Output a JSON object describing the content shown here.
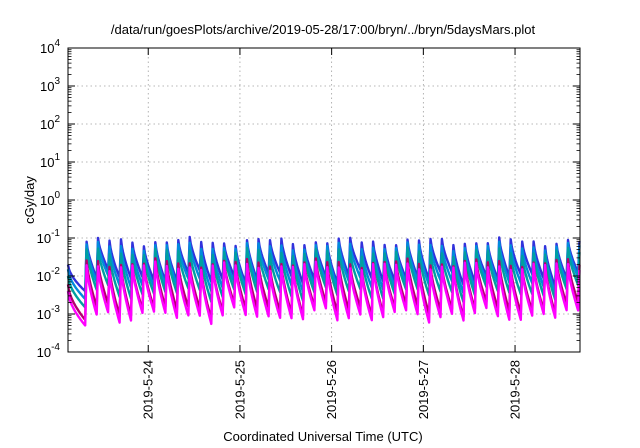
{
  "chart_data": {
    "type": "line",
    "title": "/data/run/goesPlots/archive/2019-05-28/17:00/bryn/../bryn/5daysMars.plot",
    "xlabel": "Coordinated Universal Time (UTC)",
    "ylabel": "cGy/day",
    "yscale": "log",
    "ylim": [
      0.0001,
      10000
    ],
    "yticks": [
      {
        "value": 0.0001,
        "base": "10",
        "exp": "-4"
      },
      {
        "value": 0.001,
        "base": "10",
        "exp": "-3"
      },
      {
        "value": 0.01,
        "base": "10",
        "exp": "-2"
      },
      {
        "value": 0.1,
        "base": "10",
        "exp": "-1"
      },
      {
        "value": 1,
        "base": "10",
        "exp": "0"
      },
      {
        "value": 10,
        "base": "10",
        "exp": "1"
      },
      {
        "value": 100,
        "base": "10",
        "exp": "2"
      },
      {
        "value": 1000,
        "base": "10",
        "exp": "3"
      },
      {
        "value": 10000,
        "base": "10",
        "exp": "4"
      }
    ],
    "xlim": [
      "2019-05-23 03:00",
      "2019-05-28 17:00"
    ],
    "xticks": [
      "2019-5-24",
      "2019-5-25",
      "2019-5-26",
      "2019-5-27",
      "2019-5-28"
    ],
    "grid": true,
    "cycle_hours": 3,
    "first_cycle_start": "2019-05-23 07:30",
    "series": [
      {
        "color": "#ff00ff",
        "peak": 0.018,
        "trough": 0.0009,
        "first_peak": 0.004,
        "first_trough": 0.0005
      },
      {
        "color": "#b4006e",
        "peak": 0.022,
        "trough": 0.0013,
        "first_peak": 0.006,
        "first_trough": 0.0007
      },
      {
        "color": "#00a0a0",
        "peak": 0.042,
        "trough": 0.0035,
        "first_peak": 0.01,
        "first_trough": 0.0015
      },
      {
        "color": "#008cdc",
        "peak": 0.06,
        "trough": 0.006,
        "first_peak": 0.015,
        "first_trough": 0.0025
      },
      {
        "color": "#3232dc",
        "peak": 0.08,
        "trough": 0.009,
        "first_peak": 0.02,
        "first_trough": 0.004
      }
    ]
  }
}
